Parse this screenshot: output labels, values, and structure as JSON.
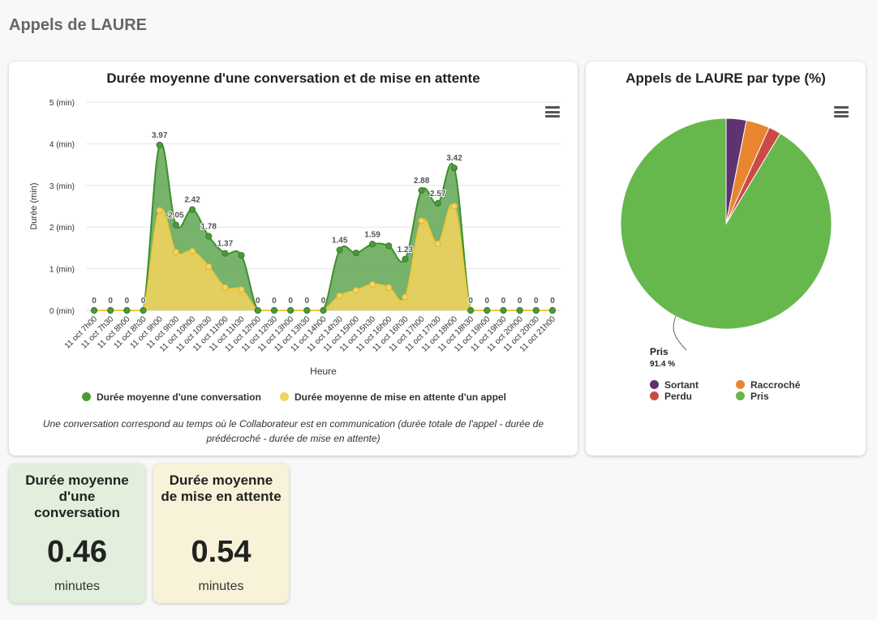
{
  "page": {
    "title": "Appels de LAURE"
  },
  "colors": {
    "conversation": "#4a9a3a",
    "attente": "#f5d45e",
    "sortant": "#5e3370",
    "raccroche": "#e8862f",
    "perdu": "#cc4a45",
    "pris": "#66b84d"
  },
  "chart_data": [
    {
      "type": "area",
      "title": "Durée moyenne d'une conversation et de mise en attente",
      "xlabel": "Heure",
      "ylabel": "Durée (min)",
      "ylim": [
        0,
        5
      ],
      "yticks": [
        "0 (min)",
        "1 (min)",
        "2 (min)",
        "3 (min)",
        "4 (min)",
        "5 (min)"
      ],
      "categories": [
        "11 oct 7h00",
        "11 oct 7h30",
        "11 oct 8h00",
        "11 oct 8h30",
        "11 oct 9h00",
        "11 oct 9h30",
        "11 oct 10h00",
        "11 oct 10h30",
        "11 oct 11h00",
        "11 oct 11h30",
        "11 oct 12h00",
        "11 oct 12h30",
        "11 oct 13h00",
        "11 oct 13h30",
        "11 oct 14h00",
        "11 oct 14h30",
        "11 oct 15h00",
        "11 oct 15h30",
        "11 oct 16h00",
        "11 oct 16h30",
        "11 oct 17h00",
        "11 oct 17h30",
        "11 oct 18h00",
        "11 oct 18h30",
        "11 oct 19h00",
        "11 oct 19h30",
        "11 oct 20h00",
        "11 oct 20h30",
        "11 oct 21h00"
      ],
      "series": [
        {
          "name": "Durée moyenne d'une conversation",
          "values": [
            0,
            0,
            0,
            0,
            3.97,
            2.05,
            2.42,
            1.78,
            1.37,
            1.32,
            0,
            0,
            0,
            0,
            0,
            1.45,
            1.38,
            1.59,
            1.55,
            1.23,
            2.88,
            2.57,
            3.42,
            0,
            0,
            0,
            0,
            0,
            0
          ]
        },
        {
          "name": "Durée moyenne de mise en attente d'un appel",
          "values": [
            0,
            0,
            0,
            0,
            2.4,
            1.4,
            1.42,
            1.05,
            0.55,
            0.5,
            0,
            0,
            0,
            0,
            0,
            0.35,
            0.48,
            0.62,
            0.55,
            0.32,
            2.15,
            1.6,
            2.5,
            0,
            0,
            0,
            0,
            0,
            0
          ]
        }
      ],
      "data_labels": [
        "0",
        "0",
        "0",
        "0",
        "3.97",
        "2.05",
        "2.42",
        "1.78",
        "1.37",
        "",
        "0",
        "0",
        "0",
        "0",
        "0",
        "1.45",
        "",
        "1.59",
        "",
        "1.23",
        "2.88",
        "2.57",
        "3.42",
        "0",
        "0",
        "0",
        "0",
        "0",
        "0"
      ],
      "note": "Une conversation correspond au temps où le Collaborateur est en communication (durée totale de l'appel - durée de prédécroché - durée de mise en attente)"
    },
    {
      "type": "pie",
      "title": "Appels de LAURE par type (%)",
      "slices": [
        {
          "name": "Sortant",
          "value": 3.1
        },
        {
          "name": "Raccroché",
          "value": 3.6
        },
        {
          "name": "Perdu",
          "value": 1.9
        },
        {
          "name": "Pris",
          "value": 91.4
        }
      ],
      "callout": {
        "name": "Pris",
        "value": "91.4 %"
      }
    }
  ],
  "kpis": [
    {
      "title": "Durée moyenne d'une conversation",
      "value": "0.46",
      "unit": "minutes"
    },
    {
      "title": "Durée moyenne de mise en attente",
      "value": "0.54",
      "unit": "minutes"
    }
  ]
}
